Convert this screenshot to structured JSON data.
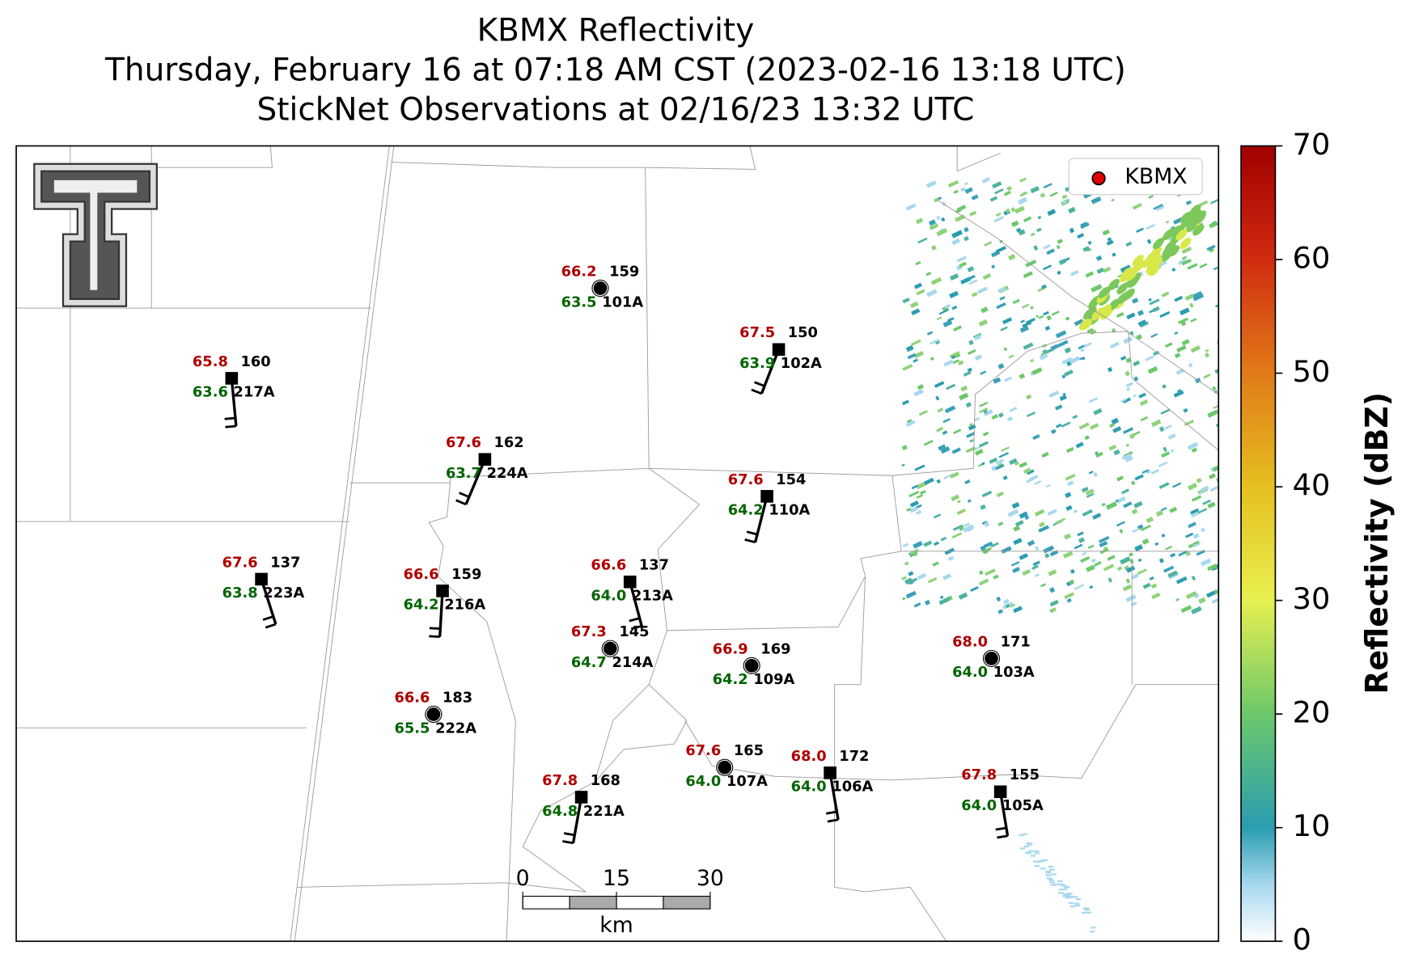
{
  "title": [
    "KBMX Reflectivity",
    "Thursday, February 16 at 07:18 AM CST (2023-02-16 13:18 UTC)",
    "StickNet Observations at 02/16/23 13:32 UTC"
  ],
  "legend": "KBMX",
  "colorbar": {
    "label": "Reflectivity (dBZ)",
    "range": [
      0,
      70
    ],
    "ticks": [
      0,
      10,
      20,
      30,
      40,
      50,
      60,
      70
    ]
  },
  "scale_bar": {
    "ticks": [
      0,
      15,
      30
    ],
    "unit": "km"
  },
  "stations": [
    {
      "id": "101A",
      "temperature": "66.2",
      "dewpoint": "63.5",
      "value": "159"
    },
    {
      "id": "102A",
      "temperature": "67.5",
      "dewpoint": "63.9",
      "value": "150"
    },
    {
      "id": "217A",
      "temperature": "65.8",
      "dewpoint": "63.6",
      "value": "160"
    },
    {
      "id": "224A",
      "temperature": "67.6",
      "dewpoint": "63.7",
      "value": "162"
    },
    {
      "id": "110A",
      "temperature": "67.6",
      "dewpoint": "64.2",
      "value": "154"
    },
    {
      "id": "223A",
      "temperature": "67.6",
      "dewpoint": "63.8",
      "value": "137"
    },
    {
      "id": "216A",
      "temperature": "66.6",
      "dewpoint": "64.2",
      "value": "159"
    },
    {
      "id": "213A",
      "temperature": "66.6",
      "dewpoint": "64.0",
      "value": "137"
    },
    {
      "id": "214A",
      "temperature": "67.3",
      "dewpoint": "64.7",
      "value": "145"
    },
    {
      "id": "109A",
      "temperature": "66.9",
      "dewpoint": "64.2",
      "value": "169"
    },
    {
      "id": "103A",
      "temperature": "68.0",
      "dewpoint": "64.0",
      "value": "171"
    },
    {
      "id": "222A",
      "temperature": "66.6",
      "dewpoint": "65.5",
      "value": "183"
    },
    {
      "id": "107A",
      "temperature": "67.6",
      "dewpoint": "64.0",
      "value": "165"
    },
    {
      "id": "106A",
      "temperature": "68.0",
      "dewpoint": "64.0",
      "value": "172"
    },
    {
      "id": "221A",
      "temperature": "67.8",
      "dewpoint": "64.8",
      "value": "168"
    },
    {
      "id": "105A",
      "temperature": "67.8",
      "dewpoint": "64.0",
      "value": "155"
    }
  ]
}
